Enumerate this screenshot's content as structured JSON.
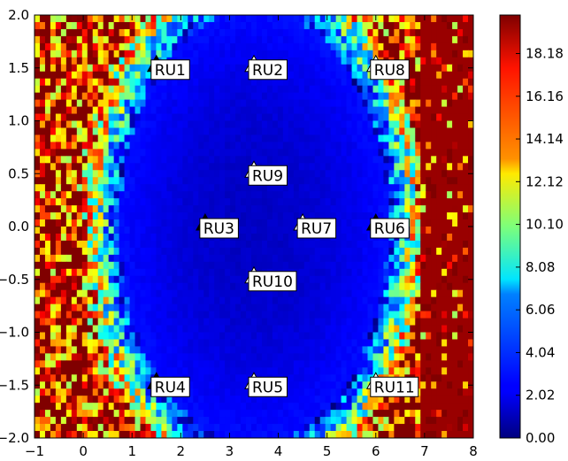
{
  "chart_data": {
    "type": "heatmap",
    "title": "",
    "xlabel": "",
    "ylabel": "",
    "xlim": [
      -1,
      8
    ],
    "ylim": [
      -2,
      2
    ],
    "x_ticks": [
      -1,
      0,
      1,
      2,
      3,
      4,
      5,
      6,
      7,
      8
    ],
    "x_tick_labels": [
      "−1",
      "0",
      "1",
      "2",
      "3",
      "4",
      "5",
      "6",
      "7",
      "8"
    ],
    "y_ticks": [
      -2.0,
      -1.5,
      -1.0,
      -0.5,
      0.0,
      0.5,
      1.0,
      1.5,
      2.0
    ],
    "y_tick_labels": [
      "−2.0",
      "−1.5",
      "−1.0",
      "−0.5",
      "0.0",
      "0.5",
      "1.0",
      "1.5",
      "2.0"
    ],
    "colorbar": {
      "colormap": "jet",
      "range": [
        0,
        20
      ],
      "ticks": [
        0.0,
        2.02,
        4.04,
        6.06,
        8.08,
        10.1,
        12.12,
        14.14,
        16.16,
        18.18
      ],
      "tick_labels": [
        "0.00",
        "2.02",
        "4.04",
        "6.06",
        "8.08",
        "10.10",
        "12.12",
        "14.14",
        "16.16",
        "18.18"
      ]
    },
    "field": {
      "description_values": "low values (~1) in central region, rising to saturated high values (>18) near left edge corners and right side (x > 6.5)",
      "center_x": 3.5,
      "center_y": 0.0
    },
    "markers": [
      {
        "label": "RU1",
        "x": 1.5,
        "y": 1.5,
        "color": "#000000"
      },
      {
        "label": "RU2",
        "x": 3.5,
        "y": 1.5,
        "color": "#ffffff"
      },
      {
        "label": "RU8",
        "x": 6.0,
        "y": 1.5,
        "color": "#ffffff"
      },
      {
        "label": "RU9",
        "x": 3.5,
        "y": 0.5,
        "color": "#ffffff"
      },
      {
        "label": "RU3",
        "x": 2.5,
        "y": 0.0,
        "color": "#000000"
      },
      {
        "label": "RU7",
        "x": 4.5,
        "y": 0.0,
        "color": "#ffffff"
      },
      {
        "label": "RU6",
        "x": 6.0,
        "y": 0.0,
        "color": "#000000"
      },
      {
        "label": "RU10",
        "x": 3.5,
        "y": -0.5,
        "color": "#ffffff"
      },
      {
        "label": "RU4",
        "x": 1.5,
        "y": -1.5,
        "color": "#000000"
      },
      {
        "label": "RU5",
        "x": 3.5,
        "y": -1.5,
        "color": "#ffffff"
      },
      {
        "label": "RU11",
        "x": 6.0,
        "y": -1.5,
        "color": "#ffffff"
      }
    ]
  }
}
